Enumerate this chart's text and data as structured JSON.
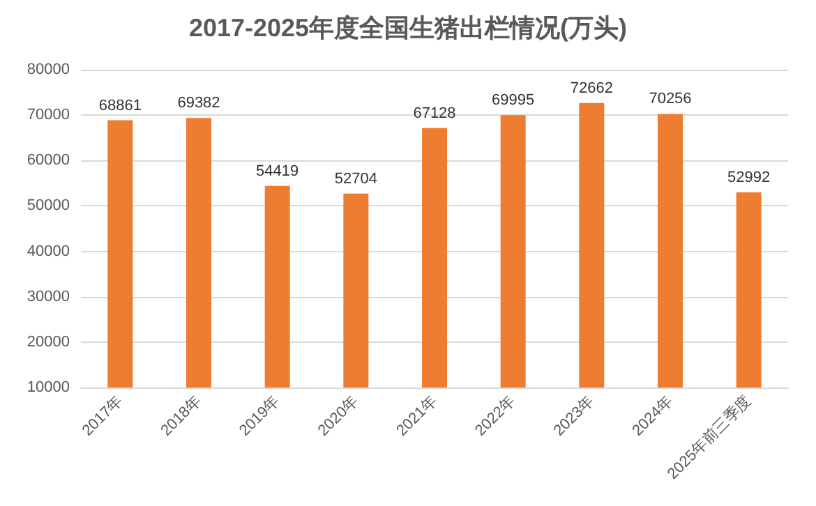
{
  "chart_data": {
    "type": "bar",
    "title": "2017-2025年度全国生猪出栏情况(万头)",
    "categories": [
      "2017年",
      "2018年",
      "2019年",
      "2020年",
      "2021年",
      "2022年",
      "2023年",
      "2024年",
      "2025年前三季度"
    ],
    "values": [
      68861,
      69382,
      54419,
      52704,
      67128,
      69995,
      72662,
      70256,
      52992
    ],
    "color": "#ed7d31",
    "ylim": [
      10000,
      80000
    ],
    "yticks": [
      10000,
      20000,
      30000,
      40000,
      50000,
      60000,
      70000,
      80000
    ],
    "grid": "y",
    "data_labels": true
  }
}
